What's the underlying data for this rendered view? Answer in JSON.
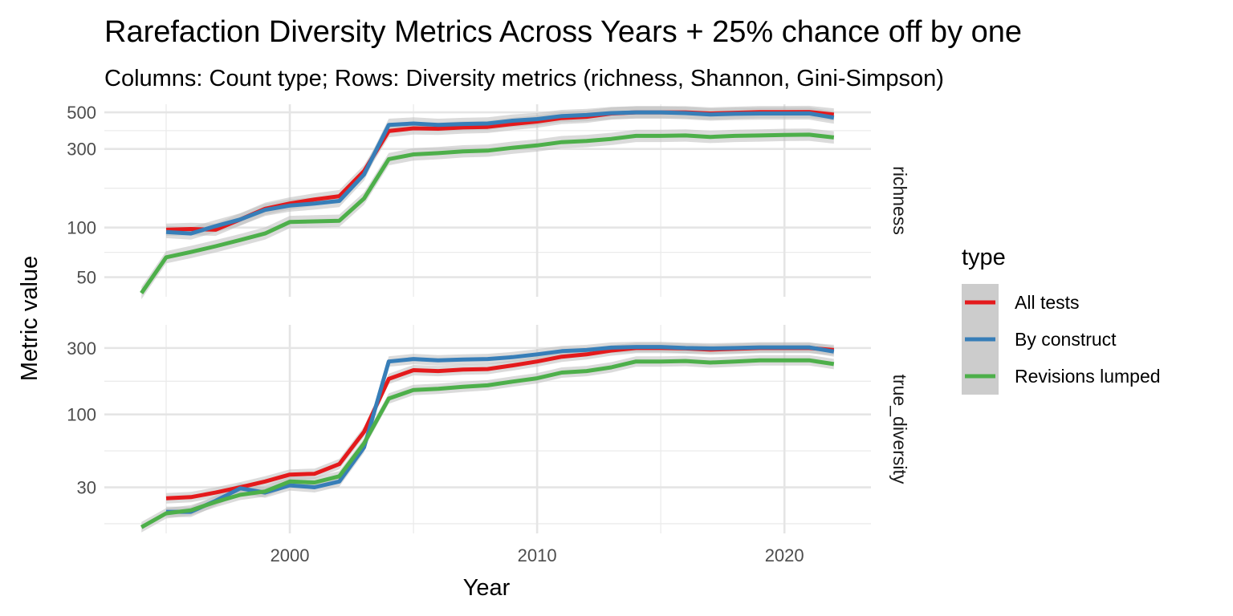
{
  "chart_data": {
    "type": "line",
    "title": "Rarefaction Diversity Metrics Across Years + 25% chance off by one",
    "subtitle": "Columns: Count type; Rows: Diversity metrics (richness, Shannon, Gini-Simpson)",
    "xlabel": "Year",
    "ylabel": "Metric value",
    "x_ticks": [
      2000,
      2010,
      2020
    ],
    "xlim": [
      1992.5,
      2023.5
    ],
    "legend_title": "type",
    "legend_position": "right",
    "grid": true,
    "ribbons": true,
    "series_styles": [
      {
        "name": "All tests",
        "color": "#e41a1c"
      },
      {
        "name": "By construct",
        "color": "#377eb8"
      },
      {
        "name": "Revisions lumped",
        "color": "#4daf4a"
      }
    ],
    "ribbon_color": "#bdbdbd",
    "panels": [
      {
        "strip": "richness",
        "y_scale": "log",
        "ylim": [
          38,
          560
        ],
        "y_ticks": [
          50,
          100,
          300,
          500
        ],
        "series": [
          {
            "name": "All tests",
            "x": [
              1995,
              1996,
              1997,
              1998,
              1999,
              2000,
              2001,
              2002,
              2003,
              2004,
              2005,
              2006,
              2007,
              2008,
              2009,
              2010,
              2011,
              2012,
              2013,
              2014,
              2015,
              2016,
              2017,
              2018,
              2019,
              2020,
              2021,
              2022
            ],
            "y": [
              97,
              98,
              97,
              112,
              130,
              140,
              148,
              155,
              220,
              385,
              400,
              398,
              405,
              408,
              425,
              440,
              462,
              470,
              492,
              500,
              500,
              500,
              492,
              497,
              502,
              502,
              503,
              485
            ]
          },
          {
            "name": "By construct",
            "x": [
              1995,
              1996,
              1997,
              1998,
              1999,
              2000,
              2001,
              2002,
              2003,
              2004,
              2005,
              2006,
              2007,
              2008,
              2009,
              2010,
              2011,
              2012,
              2013,
              2014,
              2015,
              2016,
              2017,
              2018,
              2019,
              2020,
              2021,
              2022
            ],
            "y": [
              94,
              92,
              102,
              112,
              128,
              136,
              140,
              145,
              210,
              420,
              428,
              420,
              425,
              428,
              445,
              455,
              475,
              482,
              495,
              500,
              500,
              495,
              485,
              490,
              492,
              492,
              493,
              465
            ]
          },
          {
            "name": "Revisions lumped",
            "x": [
              1994,
              1995,
              1996,
              1997,
              1998,
              1999,
              2000,
              2001,
              2002,
              2003,
              2004,
              2005,
              2006,
              2007,
              2008,
              2009,
              2010,
              2011,
              2012,
              2013,
              2014,
              2015,
              2016,
              2017,
              2018,
              2019,
              2020,
              2021,
              2022
            ],
            "y": [
              40,
              66,
              71,
              77,
              84,
              92,
              108,
              109,
              110,
              150,
              260,
              278,
              283,
              290,
              293,
              305,
              315,
              330,
              335,
              345,
              360,
              360,
              362,
              355,
              360,
              362,
              365,
              366,
              352
            ]
          }
        ]
      },
      {
        "strip": "true_diversity",
        "y_scale": "log",
        "ylim": [
          14,
          440
        ],
        "y_ticks": [
          30,
          100,
          300
        ],
        "series": [
          {
            "name": "All tests",
            "x": [
              1995,
              1996,
              1997,
              1998,
              1999,
              2000,
              2001,
              2002,
              2003,
              2004,
              2005,
              2006,
              2007,
              2008,
              2009,
              2010,
              2011,
              2012,
              2013,
              2014,
              2015,
              2016,
              2017,
              2018,
              2019,
              2020,
              2021,
              2022
            ],
            "y": [
              25,
              25.5,
              27.5,
              30,
              33,
              37,
              37.5,
              44,
              75,
              180,
              208,
              205,
              210,
              212,
              225,
              240,
              260,
              270,
              288,
              300,
              300,
              298,
              292,
              296,
              300,
              300,
              300,
              290
            ]
          },
          {
            "name": "By construct",
            "x": [
              1995,
              1996,
              1997,
              1998,
              1999,
              2000,
              2001,
              2002,
              2003,
              2004,
              2005,
              2006,
              2007,
              2008,
              2009,
              2010,
              2011,
              2012,
              2013,
              2014,
              2015,
              2016,
              2017,
              2018,
              2019,
              2020,
              2021,
              2022
            ],
            "y": [
              20,
              20,
              24,
              29.5,
              27.5,
              31,
              30,
              33,
              58,
              240,
              250,
              245,
              248,
              250,
              258,
              270,
              285,
              290,
              302,
              305,
              305,
              300,
              298,
              300,
              303,
              303,
              303,
              283
            ]
          },
          {
            "name": "Revisions lumped",
            "x": [
              1994,
              1995,
              1996,
              1997,
              1998,
              1999,
              2000,
              2001,
              2002,
              2003,
              2004,
              2005,
              2006,
              2007,
              2008,
              2009,
              2010,
              2011,
              2012,
              2013,
              2014,
              2015,
              2016,
              2017,
              2018,
              2019,
              2020,
              2021,
              2022
            ],
            "y": [
              15.5,
              19.5,
              20.5,
              23.5,
              26.5,
              28,
              33,
              32.5,
              36,
              62,
              130,
              150,
              153,
              158,
              162,
              172,
              182,
              200,
              205,
              218,
              240,
              240,
              242,
              236,
              240,
              245,
              245,
              245,
              230
            ]
          }
        ]
      }
    ]
  }
}
